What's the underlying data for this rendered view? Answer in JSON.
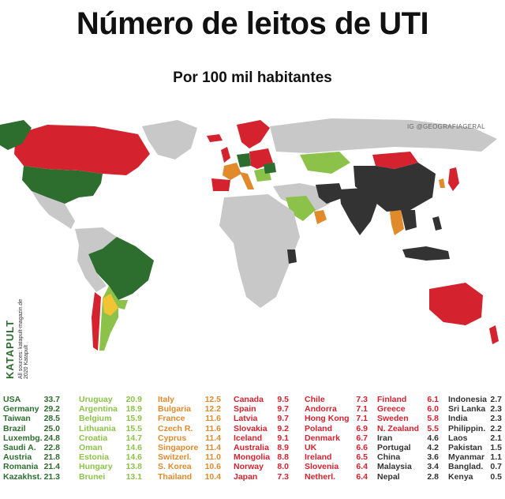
{
  "title": "Número de leitos de UTI",
  "subtitle": "Por 100 mil habitantes",
  "credit": {
    "handle": "IG @GEOGRAFIAGERAL",
    "brand": "KATAPULT",
    "sources": "All sources: katapult-magazin.de",
    "copyright": "2020 Katapult"
  },
  "colors": {
    "dark_green": "#2d6e2f",
    "light_green": "#8cc24a",
    "yellow": "#f2c434",
    "orange": "#e08a2c",
    "red": "#d4222e",
    "black": "#333333",
    "no_data": "#c8c8c8"
  },
  "legend": {
    "columns": [
      {
        "color": "dark_green",
        "rows": [
          {
            "name": "USA",
            "value": "33.7"
          },
          {
            "name": "Germany",
            "value": "29.2"
          },
          {
            "name": "Taiwan",
            "value": "28.5"
          },
          {
            "name": "Brazil",
            "value": "25.0"
          },
          {
            "name": "Luxembg.",
            "value": "24.8"
          },
          {
            "name": "Saudi A.",
            "value": "22.8"
          },
          {
            "name": "Austria",
            "value": "21.8"
          },
          {
            "name": "Romania",
            "value": "21.4"
          },
          {
            "name": "Kazakhst.",
            "value": "21.3"
          }
        ]
      },
      {
        "color": "light_green",
        "rows": [
          {
            "name": "Uruguay",
            "value": "20.9"
          },
          {
            "name": "Argentina",
            "value": "18.9"
          },
          {
            "name": "Belgium",
            "value": "15.9"
          },
          {
            "name": "Lithuania",
            "value": "15.5"
          },
          {
            "name": "Croatia",
            "value": "14.7"
          },
          {
            "name": "Oman",
            "value": "14.6"
          },
          {
            "name": "Estonia",
            "value": "14.6"
          },
          {
            "name": "Hungary",
            "value": "13.8"
          },
          {
            "name": "Brunei",
            "value": "13.1"
          }
        ]
      },
      {
        "color": "orange",
        "rows": [
          {
            "name": "Italy",
            "value": "12.5"
          },
          {
            "name": "Bulgaria",
            "value": "12.2"
          },
          {
            "name": "France",
            "value": "11.6"
          },
          {
            "name": "Czech R.",
            "value": "11.6"
          },
          {
            "name": "Cyprus",
            "value": "11.4"
          },
          {
            "name": "Singapore",
            "value": "11.4"
          },
          {
            "name": "Switzerl.",
            "value": "11.0"
          },
          {
            "name": "S. Korea",
            "value": "10.6"
          },
          {
            "name": "Thailand",
            "value": "10.4"
          }
        ]
      },
      {
        "color": "red",
        "rows": [
          {
            "name": "Canada",
            "value": "9.5"
          },
          {
            "name": "Spain",
            "value": "9.7"
          },
          {
            "name": "Latvia",
            "value": "9.7"
          },
          {
            "name": "Slovakia",
            "value": "9.2"
          },
          {
            "name": "Iceland",
            "value": "9.1"
          },
          {
            "name": "Australia",
            "value": "8.9"
          },
          {
            "name": "Mongolia",
            "value": "8.8"
          },
          {
            "name": "Norway",
            "value": "8.0"
          },
          {
            "name": "Japan",
            "value": "7.3"
          }
        ]
      },
      {
        "color": "red",
        "rows": [
          {
            "name": "Chile",
            "value": "7.3"
          },
          {
            "name": "Andorra",
            "value": "7.1"
          },
          {
            "name": "Hong Kong",
            "value": "7.1"
          },
          {
            "name": "Poland",
            "value": "6.9"
          },
          {
            "name": "Denmark",
            "value": "6.7"
          },
          {
            "name": "UK",
            "value": "6.6"
          },
          {
            "name": "Ireland",
            "value": "6.5"
          },
          {
            "name": "Slovenia",
            "value": "6.4"
          },
          {
            "name": "Netherl.",
            "value": "6.4"
          }
        ]
      },
      {
        "color": "red",
        "color_from": 4,
        "color_after": "black",
        "rows": [
          {
            "name": "Finland",
            "value": "6.1"
          },
          {
            "name": "Greece",
            "value": "6.0"
          },
          {
            "name": "Sweden",
            "value": "5.8"
          },
          {
            "name": "N. Zealand",
            "value": "5.5"
          },
          {
            "name": "Iran",
            "value": "4.6"
          },
          {
            "name": "Portugal",
            "value": "4.2"
          },
          {
            "name": "China",
            "value": "3.6"
          },
          {
            "name": "Malaysia",
            "value": "3.4"
          },
          {
            "name": "Nepal",
            "value": "2.8"
          }
        ]
      },
      {
        "color": "black",
        "rows": [
          {
            "name": "Indonesia",
            "value": "2.7"
          },
          {
            "name": "Sri Lanka",
            "value": "2.3"
          },
          {
            "name": "India",
            "value": "2.3"
          },
          {
            "name": "Philippin.",
            "value": "2.2"
          },
          {
            "name": "Laos",
            "value": "2.1"
          },
          {
            "name": "Pakistan",
            "value": "1.5"
          },
          {
            "name": "Myanmar",
            "value": "1.1"
          },
          {
            "name": "Banglad.",
            "value": "0.7"
          },
          {
            "name": "Kenya",
            "value": "0.5"
          }
        ]
      }
    ]
  }
}
